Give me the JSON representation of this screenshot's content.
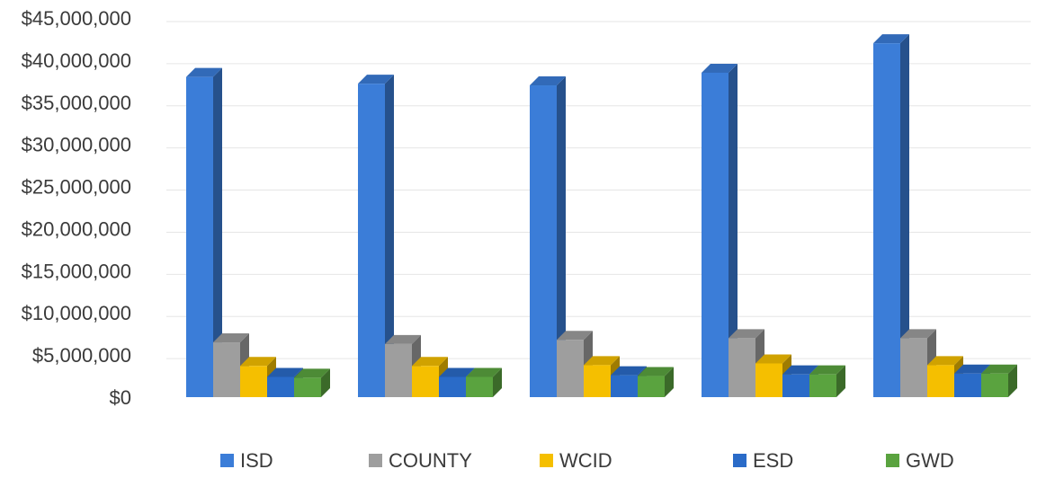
{
  "chart_data": {
    "type": "bar",
    "title": "",
    "xlabel": "",
    "ylabel": "",
    "ylim": [
      0,
      45000000
    ],
    "y_ticks": [
      "$0",
      "$5,000,000",
      "$10,000,000",
      "$15,000,000",
      "$20,000,000",
      "$25,000,000",
      "$30,000,000",
      "$35,000,000",
      "$40,000,000",
      "$45,000,000"
    ],
    "y_tick_values": [
      0,
      5000000,
      10000000,
      15000000,
      20000000,
      25000000,
      30000000,
      35000000,
      40000000,
      45000000
    ],
    "grid": true,
    "three_d": true,
    "legend_position": "bottom",
    "categories": [
      "",
      "",
      "",
      "",
      ""
    ],
    "series": [
      {
        "name": "ISD",
        "color": "#3b7dd8",
        "values": [
          38000000,
          37200000,
          37000000,
          38500000,
          42000000
        ]
      },
      {
        "name": "COUNTY",
        "color": "#9e9e9e",
        "values": [
          6500000,
          6300000,
          6800000,
          7000000,
          7000000
        ]
      },
      {
        "name": "WCID",
        "color": "#f5bf00",
        "values": [
          3700000,
          3700000,
          3800000,
          4000000,
          3800000
        ]
      },
      {
        "name": "ESD",
        "color": "#2a6bc8",
        "values": [
          2400000,
          2400000,
          2600000,
          2700000,
          2800000
        ]
      },
      {
        "name": "GWD",
        "color": "#5aa33f",
        "values": [
          2300000,
          2400000,
          2500000,
          2700000,
          2800000
        ]
      }
    ]
  }
}
